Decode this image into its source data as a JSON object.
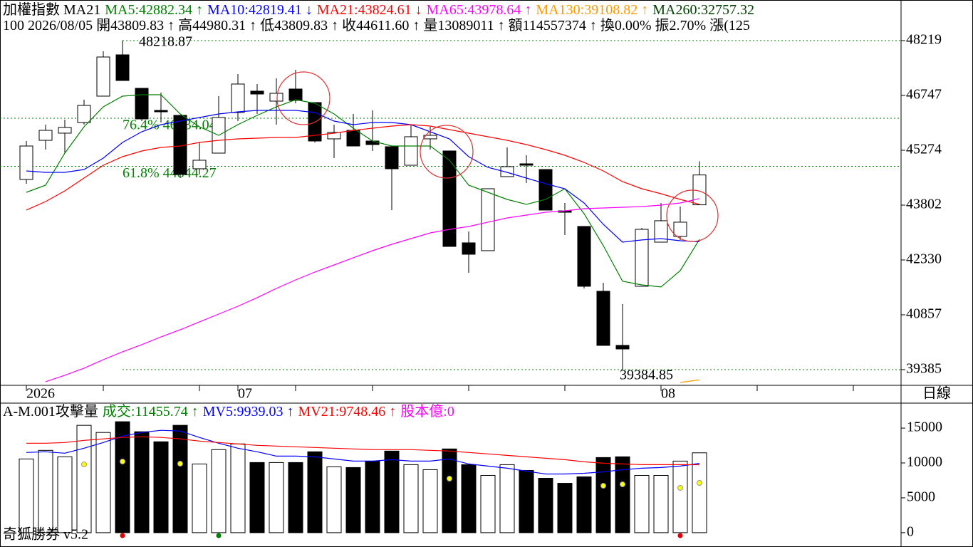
{
  "chart_data": [
    {
      "type": "candlestick",
      "title_parts": [
        {
          "text": "加權指數 MA21",
          "color": "#000000"
        },
        {
          "text": "MA5:42882.34 ↑",
          "color": "#008000"
        },
        {
          "text": "MA10:42819.41 ↓",
          "color": "#0000ff"
        },
        {
          "text": "MA21:43824.61 ↓",
          "color": "#ff0000"
        },
        {
          "text": "MA65:43978.64 ↑",
          "color": "#ff00ff"
        },
        {
          "text": "MA130:39108.82 ↑",
          "color": "#ff9900"
        },
        {
          "text": "MA260:32757.32",
          "color": "#004000"
        }
      ],
      "subtitle": "100 2026/08/05 開43809.83 ↑ 高44980.31 ↑ 低43809.83 ↑ 收44611.60 ↑ 量13089011 ↑ 額114557374 ↑ 換0.00% 振2.70% 漲(125",
      "categories": [
        "2026",
        null,
        null,
        null,
        null,
        null,
        null,
        null,
        null,
        null,
        null,
        "07",
        null,
        null,
        null,
        null,
        null,
        null,
        null,
        null,
        null,
        null,
        null,
        null,
        null,
        null,
        null,
        null,
        null,
        null,
        null,
        null,
        null,
        "08",
        null,
        null
      ],
      "open": [
        44491,
        45542,
        45734,
        46020,
        46728,
        47837,
        46938,
        46345,
        46212,
        44778,
        45198,
        46288,
        46862,
        46594,
        46919,
        46556,
        45581,
        45810,
        45523,
        45370,
        44873,
        45581,
        45256,
        42789,
        42579,
        44567,
        44911,
        44758,
        43649,
        43229,
        41489,
        40036,
        41623,
        42808,
        42961,
        43809.83
      ],
      "high": [
        45523,
        45963,
        46097,
        46632,
        47932,
        48218.87,
        46938,
        46823,
        46212,
        45485,
        46728,
        47321,
        47053,
        47206,
        47435,
        46556,
        45963,
        46250,
        46345,
        45370,
        45963,
        45906,
        45256,
        43095,
        44242,
        45351,
        45141,
        44758,
        43860,
        43229,
        41718,
        41145,
        43191,
        43860,
        43764,
        44980.31
      ],
      "low": [
        44376,
        45294,
        45198,
        45963,
        46728,
        47148,
        46059,
        46020,
        44529,
        44625,
        45198,
        46059,
        46250,
        45963,
        46537,
        45485,
        45064,
        45389,
        45256,
        43669,
        44873,
        45294,
        42693,
        41986,
        42579,
        44567,
        44395,
        43669,
        42999,
        41565,
        40036,
        39384.85,
        41623,
        42808,
        42866,
        43809.83
      ],
      "close": [
        45389,
        45810,
        45887,
        46479,
        47779,
        47148,
        46116,
        46307,
        44625,
        45007,
        46154,
        47053,
        46785,
        46804,
        46613,
        45523,
        45753,
        45389,
        45428,
        44778,
        45638,
        45676,
        42693,
        42483,
        44242,
        44835,
        44873,
        43669,
        43611,
        41623,
        40036,
        39940,
        43152,
        43382,
        43344,
        44611.6
      ],
      "up_color": "#ffffff",
      "down_color": "#000000",
      "series": [
        {
          "name": "MA5",
          "color": "#008000",
          "values": [
            44147,
            44338,
            45198,
            45906,
            46441,
            46728,
            46766,
            46766,
            46250,
            45906,
            45676,
            45963,
            46212,
            46441,
            46632,
            46537,
            46250,
            45867,
            45523,
            45389,
            45389,
            45389,
            45007,
            44338,
            44147,
            43955,
            43822,
            43955,
            44242,
            43573,
            42713,
            41757,
            41661,
            41604,
            42043,
            42882.34
          ]
        },
        {
          "name": "MA10",
          "color": "#0000ff",
          "values": [
            44720,
            44682,
            44682,
            44758,
            45064,
            45485,
            45772,
            45963,
            46059,
            46154,
            46250,
            46307,
            46345,
            46345,
            46345,
            46288,
            46059,
            45963,
            46020,
            46020,
            45963,
            45772,
            45581,
            45103,
            44816,
            44682,
            44529,
            44376,
            44242,
            43860,
            43286,
            42808,
            42866,
            42904,
            42846,
            42819.41
          ]
        },
        {
          "name": "MA21",
          "color": "#ff0000",
          "values": [
            43669,
            43898,
            44185,
            44529,
            44873,
            45103,
            45256,
            45351,
            45389,
            45485,
            45542,
            45581,
            45600,
            45619,
            45619,
            45676,
            45734,
            45810,
            45867,
            45925,
            45963,
            45925,
            45829,
            45734,
            45638,
            45542,
            45428,
            45294,
            45141,
            44950,
            44720,
            44433,
            44242,
            44108,
            43955,
            43824.61
          ]
        },
        {
          "name": "MA65",
          "color": "#ff00ff",
          "values": [
            null,
            39061,
            39233,
            39424,
            39653,
            39864,
            40055,
            40265,
            40456,
            40667,
            40877,
            41087,
            41317,
            41565,
            41795,
            42005,
            42196,
            42388,
            42579,
            42751,
            42904,
            43057,
            43152,
            43229,
            43344,
            43458,
            43535,
            43611,
            43649,
            43707,
            43726,
            43745,
            43764,
            43802,
            43860,
            43978.64
          ]
        },
        {
          "name": "MA130",
          "color": "#ff9900",
          "values": [
            null,
            null,
            null,
            null,
            null,
            null,
            null,
            null,
            null,
            null,
            null,
            null,
            null,
            null,
            null,
            null,
            null,
            null,
            null,
            null,
            null,
            null,
            null,
            null,
            null,
            null,
            null,
            null,
            null,
            null,
            null,
            null,
            null,
            null,
            39042,
            39108.82
          ]
        }
      ],
      "annotations": [
        48218.87,
        39384.85
      ],
      "levels": [
        {
          "value": 46134.04,
          "label": "76.4% 46134.04"
        },
        {
          "value": 44844.27,
          "label": "61.8% 44844.27"
        }
      ],
      "level_color": "#008000",
      "ylim": [
        38964,
        49309
      ],
      "yticks": [
        48219,
        46747,
        45274,
        43802,
        42330,
        40857,
        39385
      ]
    },
    {
      "type": "bar",
      "title_parts": [
        {
          "text": "A-M.001攻擊量",
          "color": "#000000"
        },
        {
          "text": "成交:11455.74 ↑",
          "color": "#008000"
        },
        {
          "text": "MV5:9939.03 ↑",
          "color": "#0000ff"
        },
        {
          "text": "MV21:9748.46 ↑",
          "color": "#ff0000"
        },
        {
          "text": "股本億:0",
          "color": "#ff00ff"
        }
      ],
      "values": [
        10575,
        11807,
        10883,
        15400,
        14374,
        15914,
        14476,
        13039,
        15400,
        9856,
        11910,
        12731,
        10062,
        10062,
        10062,
        11602,
        9446,
        9343,
        10267,
        11704,
        9754,
        9035,
        12012,
        9754,
        8214,
        9754,
        8932,
        7803,
        7084,
        8008,
        10780,
        10883,
        8214,
        8214,
        10267,
        11455.74
      ],
      "series": [
        {
          "name": "MV5",
          "color": "#0000ff",
          "values": [
            11499,
            11602,
            11396,
            12115,
            12936,
            13860,
            14374,
            14682,
            14579,
            13655,
            12834,
            12115,
            11602,
            10986,
            10986,
            10883,
            10575,
            10267,
            10267,
            10472,
            10267,
            10267,
            10575,
            9856,
            9548,
            9240,
            8830,
            8419,
            8419,
            8522,
            8727,
            9035,
            9240,
            9343,
            9548,
            9939.03
          ]
        },
        {
          "name": "MV21",
          "color": "#ff0000",
          "values": [
            12834,
            12834,
            12936,
            13244,
            13450,
            13655,
            13758,
            13655,
            13450,
            13142,
            12936,
            12731,
            12526,
            12423,
            12320,
            12218,
            12115,
            12012,
            11910,
            11910,
            11910,
            11807,
            11704,
            11499,
            11294,
            11088,
            10883,
            10678,
            10472,
            10164,
            9959,
            9856,
            9754,
            9754,
            9754,
            9748.46
          ]
        }
      ],
      "ylim": [
        -1850,
        18480
      ],
      "yticks": [
        0,
        5000,
        10000,
        15000
      ]
    }
  ],
  "period": "日線",
  "footer": "奇狐勝券 v5.2"
}
